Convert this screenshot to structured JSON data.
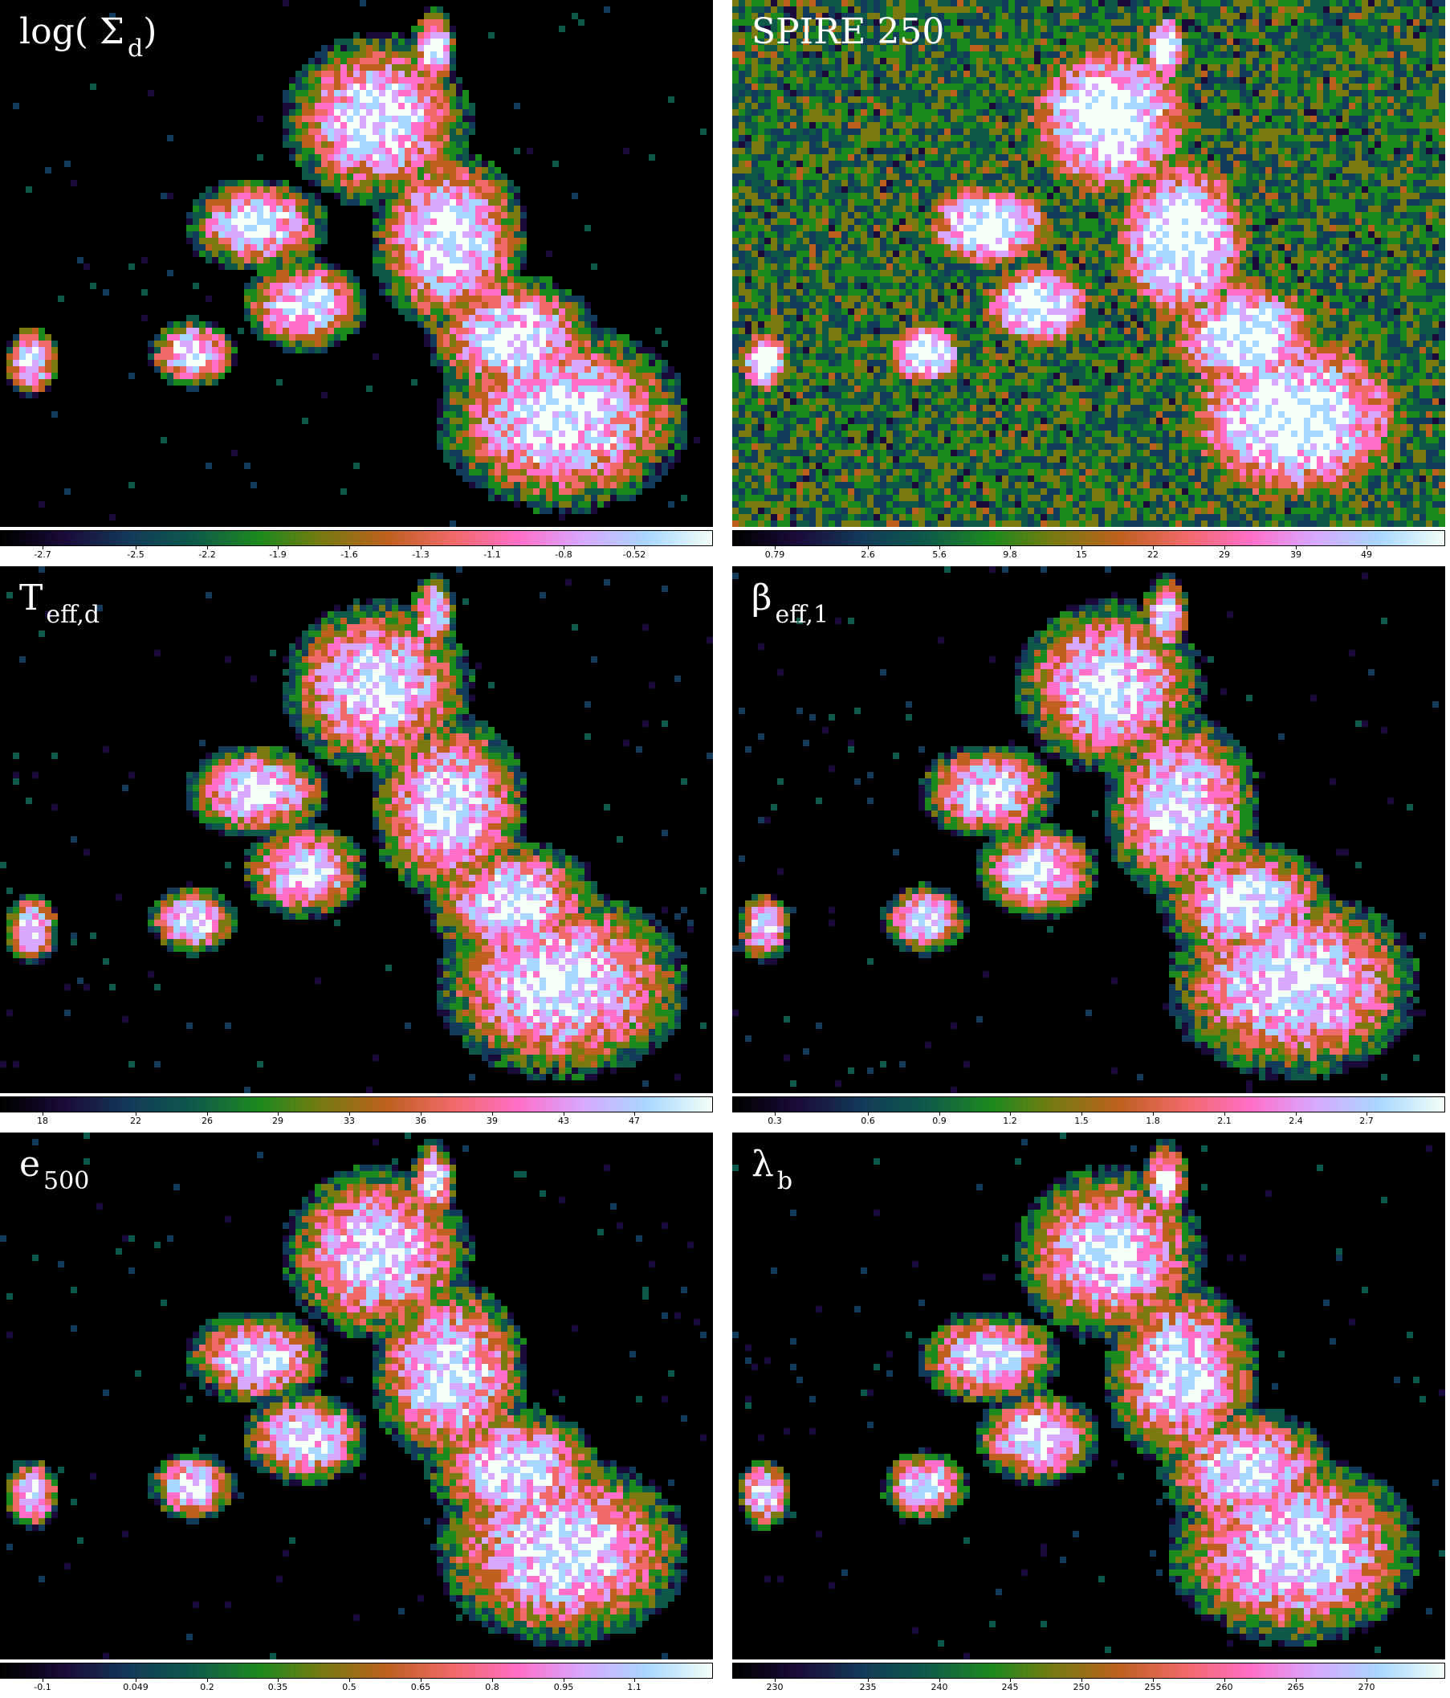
{
  "panels": [
    {
      "id": "log-sigma-d",
      "title_main": "log( Σ",
      "title_sub": "d",
      "title_end": ")",
      "ticks": [
        "-2.7",
        "-2.5",
        "-2.2",
        "-1.9",
        "-1.6",
        "-1.3",
        "-1.1",
        "-0.8",
        "-0.52"
      ]
    },
    {
      "id": "spire-250",
      "title_main": "SPIRE 250",
      "title_sub": "",
      "title_end": "",
      "ticks": [
        "0.79",
        "2.6",
        "5.6",
        "9.8",
        "15",
        "22",
        "29",
        "39",
        "49"
      ]
    },
    {
      "id": "t-eff-d",
      "title_main": "T",
      "title_sub": "eff,d",
      "title_end": "",
      "ticks": [
        "18",
        "22",
        "26",
        "29",
        "33",
        "36",
        "39",
        "43",
        "47"
      ]
    },
    {
      "id": "beta-eff-1",
      "title_main": "β",
      "title_sub": "eff,1",
      "title_end": "",
      "ticks": [
        "0.3",
        "0.6",
        "0.9",
        "1.2",
        "1.5",
        "1.8",
        "2.1",
        "2.4",
        "2.7"
      ]
    },
    {
      "id": "e-500",
      "title_main": "e",
      "title_sub": "500",
      "title_end": "",
      "ticks": [
        "-0.1",
        "0.049",
        "0.2",
        "0.35",
        "0.5",
        "0.65",
        "0.8",
        "0.95",
        "1.1"
      ]
    },
    {
      "id": "lambda-b",
      "title_main": "λ",
      "title_sub": "b",
      "title_end": "",
      "ticks": [
        "230",
        "235",
        "240",
        "245",
        "250",
        "255",
        "260",
        "265",
        "270"
      ]
    }
  ],
  "colormap": [
    "#000000",
    "#1a0a3a",
    "#123a5a",
    "#0e5a4a",
    "#1d8a1d",
    "#7a7a10",
    "#c06020",
    "#f06a6a",
    "#ff6ec8",
    "#d8a8ff",
    "#a8d8ff",
    "#f4fff8"
  ]
}
